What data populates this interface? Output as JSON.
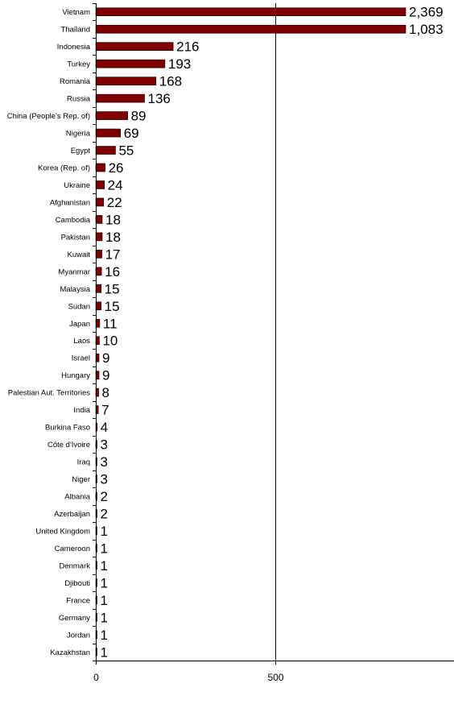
{
  "chart_data": {
    "type": "bar",
    "orientation": "horizontal",
    "categories": [
      "Vietnam",
      "Thailand",
      "Indonesia",
      "Turkey",
      "Romania",
      "Russia",
      "China (People's Rep. of)",
      "Nigeria",
      "Egypt",
      "Korea (Rep. of)",
      "Ukraine",
      "Afghanistan",
      "Cambodia",
      "Pakistan",
      "Kuwait",
      "Myanmar",
      "Malaysia",
      "Sudan",
      "Japan",
      "Laos",
      "Israel",
      "Hungary",
      "Palestian Aut. Territories",
      "India",
      "Burkina Faso",
      "Côte d'Ivoire",
      "Iraq",
      "Niger",
      "Albania",
      "Azerbaijan",
      "United Kingdom",
      "Cameroon",
      "Denmark",
      "Djibouti",
      "France",
      "Germany",
      "Jordan",
      "Kazakhstan"
    ],
    "values": [
      2369,
      1083,
      216,
      193,
      168,
      136,
      89,
      69,
      55,
      26,
      24,
      22,
      18,
      18,
      17,
      16,
      15,
      15,
      11,
      10,
      9,
      9,
      8,
      7,
      4,
      3,
      3,
      3,
      2,
      2,
      1,
      1,
      1,
      1,
      1,
      1,
      1,
      1
    ],
    "value_labels": [
      "2,369",
      "1,083",
      "216",
      "193",
      "168",
      "136",
      "89",
      "69",
      "55",
      "26",
      "24",
      "22",
      "18",
      "18",
      "17",
      "16",
      "15",
      "15",
      "11",
      "10",
      "9",
      "9",
      "8",
      "7",
      "4",
      "3",
      "3",
      "3",
      "2",
      "2",
      "1",
      "1",
      "1",
      "1",
      "1",
      "1",
      "1",
      "1"
    ],
    "x_ticks": [
      "0",
      "500"
    ],
    "x_tick_values": [
      0,
      500
    ],
    "xlim": [
      0,
      1000
    ],
    "title": "",
    "xlabel": "",
    "ylabel": "",
    "bar_color": "#800000",
    "grid": "vertical gridline at 500",
    "legend": "none"
  }
}
